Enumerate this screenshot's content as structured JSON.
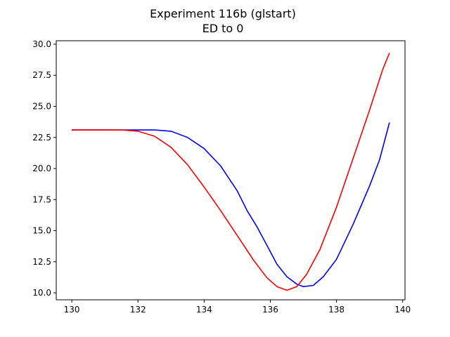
{
  "chart_data": {
    "type": "line",
    "title": "Experiment 116b (glstart)",
    "subtitle": "ED to 0",
    "xlabel": "",
    "ylabel": "",
    "xlim": [
      129.53,
      140.07
    ],
    "ylim": [
      9.44,
      30.28
    ],
    "x_ticks": [
      130,
      132,
      134,
      136,
      138,
      140
    ],
    "y_ticks": [
      10.0,
      12.5,
      15.0,
      17.5,
      20.0,
      22.5,
      25.0,
      27.5,
      30.0
    ],
    "x_tick_labels": [
      "130",
      "132",
      "134",
      "136",
      "138",
      "140"
    ],
    "y_tick_labels": [
      "10.0",
      "12.5",
      "15.0",
      "17.5",
      "20.0",
      "22.5",
      "25.0",
      "27.5",
      "30.0"
    ],
    "grid": false,
    "legend": false,
    "series": [
      {
        "color": "#0000ff",
        "x": [
          130.0,
          131.0,
          132.0,
          132.5,
          133.0,
          133.5,
          134.0,
          134.5,
          135.0,
          135.3,
          135.6,
          135.9,
          136.2,
          136.5,
          136.8,
          137.0,
          137.3,
          137.6,
          138.0,
          138.5,
          139.0,
          139.3,
          139.6
        ],
        "y": [
          23.1,
          23.1,
          23.1,
          23.1,
          23.0,
          22.5,
          21.6,
          20.2,
          18.2,
          16.6,
          15.3,
          13.8,
          12.3,
          11.3,
          10.7,
          10.5,
          10.6,
          11.3,
          12.7,
          15.5,
          18.6,
          20.7,
          23.7
        ]
      },
      {
        "color": "#ff0000",
        "x": [
          130.0,
          131.0,
          131.5,
          132.0,
          132.5,
          133.0,
          133.5,
          134.0,
          134.5,
          135.0,
          135.5,
          135.9,
          136.2,
          136.5,
          136.8,
          137.1,
          137.5,
          138.0,
          138.5,
          139.0,
          139.4,
          139.6
        ],
        "y": [
          23.1,
          23.1,
          23.1,
          23.0,
          22.6,
          21.7,
          20.3,
          18.5,
          16.6,
          14.6,
          12.6,
          11.2,
          10.5,
          10.2,
          10.5,
          11.5,
          13.5,
          16.9,
          20.8,
          24.7,
          28.0,
          29.3
        ]
      }
    ]
  }
}
